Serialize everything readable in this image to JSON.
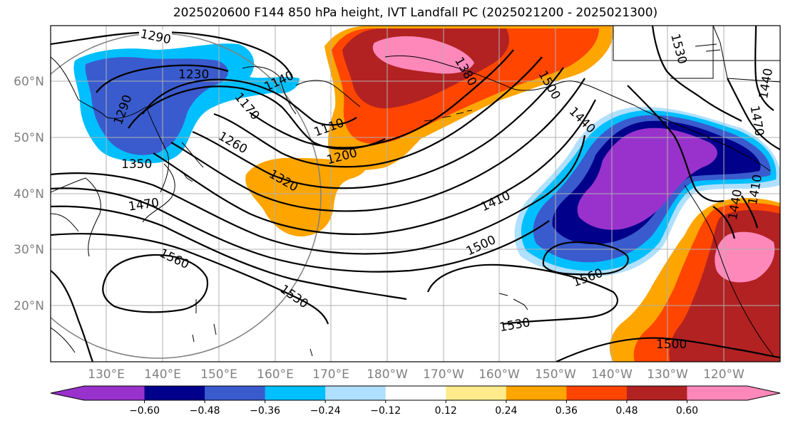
{
  "title": "2025020600 F144 850 hPa height, IVT Landfall PC (2025021200 - 2025021300)",
  "lat_labels": [
    "60°N",
    "50°N",
    "40°N",
    "30°N",
    "20°N"
  ],
  "lon_labels": [
    "130°E",
    "140°E",
    "150°E",
    "160°E",
    "170°E",
    "180°W",
    "170°W",
    "160°W",
    "150°W",
    "140°W",
    "130°W",
    "120°W"
  ],
  "contour_labels": [
    "1290",
    "1230",
    "1290",
    "1350",
    "1170",
    "1140",
    "1110",
    "1260",
    "1200",
    "1320",
    "1380",
    "1500",
    "1440",
    "1470",
    "1410",
    "1500",
    "1560",
    "1530",
    "1530",
    "1560",
    "1500",
    "1530",
    "1440",
    "1470",
    "1410",
    "1440"
  ],
  "colorbar": {
    "tick_labels": [
      "−0.60",
      "−0.48",
      "−0.36",
      "−0.24",
      "−0.12",
      "0.12",
      "0.24",
      "0.36",
      "0.48",
      "0.60"
    ],
    "colors": [
      "#9932cc",
      "#00008b",
      "#3a5bcd",
      "#00bfff",
      "#b0e0ff",
      "#ffffff",
      "#ffeb8c",
      "#ffa500",
      "#ff4500",
      "#b22222",
      "#ff88bb"
    ]
  },
  "colors": {
    "purple": "#9932cc",
    "navy": "#00008b",
    "royal": "#3a5bcd",
    "sky": "#00bfff",
    "pale_blue": "#b0e0ff",
    "pale_yellow": "#ffeb8c",
    "orange": "#ffa500",
    "red_orange": "#ff4500",
    "firebrick": "#b22222",
    "pink": "#ff88bb"
  }
}
